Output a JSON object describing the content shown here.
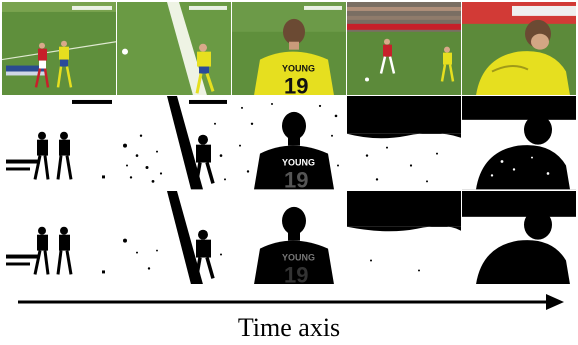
{
  "axis": {
    "label": "Time axis"
  },
  "frames": [
    {
      "jersey_name": "YOUNG",
      "jersey_number": "19"
    }
  ],
  "colors": {
    "pitch": "#5c8a3a",
    "pitch_dark": "#3d6526",
    "kit_yellow": "#e6df1f",
    "kit_red": "#c7202a",
    "mask_fg": "#000000",
    "mask_bg": "#ffffff"
  }
}
